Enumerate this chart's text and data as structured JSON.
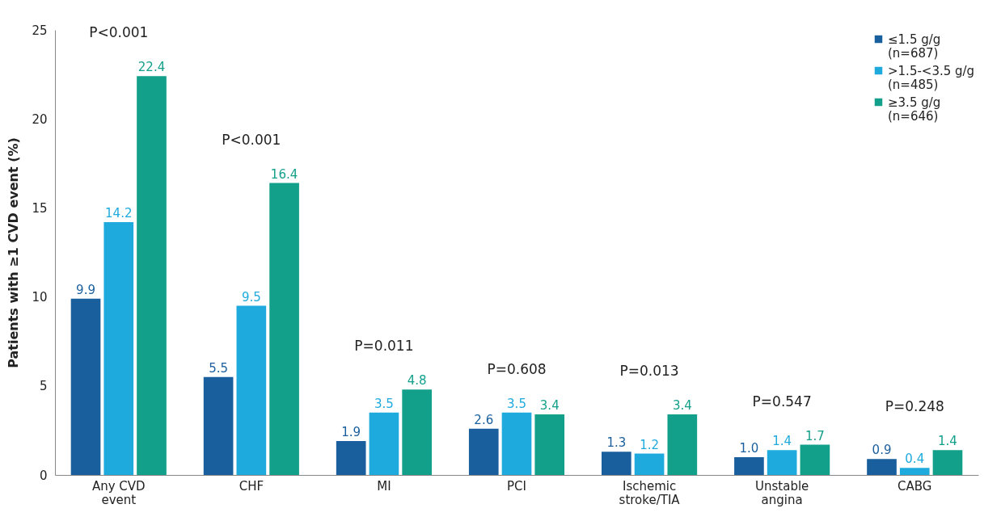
{
  "chart_data": {
    "type": "bar",
    "ylabel": "Patients with ≥1 CVD event  (%)",
    "categories": [
      "Any CVD event",
      "CHF",
      "MI",
      "PCI",
      "Ischemic stroke/TIA",
      "Unstable angina",
      "CABG"
    ],
    "series": [
      {
        "name": "≤1.5 g/g (n=687)",
        "color": "#195f9d",
        "values": [
          9.9,
          5.5,
          1.9,
          2.6,
          1.3,
          1.0,
          0.9
        ],
        "value_labels": [
          "9.9",
          "5.5",
          "1.9",
          "2.6",
          "1.3",
          "1.0",
          "0.9"
        ]
      },
      {
        "name": ">1.5-<3.5 g/g (n=485)",
        "color": "#1eaadd",
        "values": [
          14.2,
          9.5,
          3.5,
          3.5,
          1.2,
          1.4,
          0.4
        ],
        "value_labels": [
          "14.2",
          "9.5",
          "3.5",
          "3.5",
          "1.2",
          "1.4",
          "0.4"
        ]
      },
      {
        "name": "≥3.5 g/g (n=646)",
        "color": "#13a08b",
        "values": [
          22.4,
          16.4,
          4.8,
          3.4,
          3.4,
          1.7,
          1.4
        ],
        "value_labels": [
          "22.4",
          "16.4",
          "4.8",
          "3.4",
          "3.4",
          "1.7",
          "1.4"
        ]
      }
    ],
    "ylim": [
      0,
      25
    ],
    "yticks": [
      0,
      5,
      10,
      15,
      20,
      25
    ],
    "grid": false,
    "legend": "top right",
    "annotations": [
      "P<0.001",
      "P<0.001",
      "P=0.011",
      "P=0.608",
      "P=0.013",
      "P=0.547",
      "P=0.248"
    ]
  }
}
